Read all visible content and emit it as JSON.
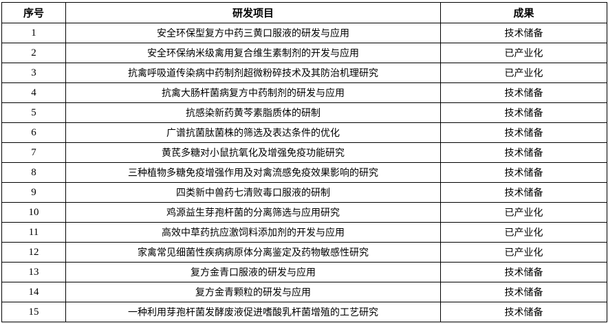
{
  "table": {
    "headers": [
      "序号",
      "研发项目",
      "成果"
    ],
    "rows": [
      {
        "no": "1",
        "project": "安全环保型复方中药三黄口服液的研发与应用",
        "result": "技术储备"
      },
      {
        "no": "2",
        "project": "安全环保纳米级禽用复合维生素制剂的开发与应用",
        "result": "已产业化"
      },
      {
        "no": "3",
        "project": "抗禽呼吸道传染病中药制剂超微粉碎技术及其防治机理研究",
        "result": "已产业化"
      },
      {
        "no": "4",
        "project": "抗禽大肠杆菌病复方中药制剂的研发与应用",
        "result": "技术储备"
      },
      {
        "no": "5",
        "project": "抗感染新药黄芩素脂质体的研制",
        "result": "技术储备"
      },
      {
        "no": "6",
        "project": "广谱抗菌肽菌株的筛选及表达条件的优化",
        "result": "技术储备"
      },
      {
        "no": "7",
        "project": "黄芪多糖对小鼠抗氧化及增强免疫功能研究",
        "result": "技术储备"
      },
      {
        "no": "8",
        "project": "三种植物多糖免疫增强作用及对禽流感免疫效果影响的研究",
        "result": "技术储备"
      },
      {
        "no": "9",
        "project": "四类新中兽药七清败毒口服液的研制",
        "result": "技术储备"
      },
      {
        "no": "10",
        "project": "鸡源益生芽孢杆菌的分离筛选与应用研究",
        "result": "已产业化"
      },
      {
        "no": "11",
        "project": "高效中草药抗应激饲料添加剂的开发与应用",
        "result": "已产业化"
      },
      {
        "no": "12",
        "project": "家禽常见细菌性疾病病原体分离鉴定及药物敏感性研究",
        "result": "已产业化"
      },
      {
        "no": "13",
        "project": "复方金青口服液的研发与应用",
        "result": "技术储备"
      },
      {
        "no": "14",
        "project": "复方金青颗粒的研发与应用",
        "result": "技术储备"
      },
      {
        "no": "15",
        "project": "一种利用芽孢杆菌发酵废液促进嗜酸乳杆菌增殖的工艺研究",
        "result": "技术储备"
      }
    ]
  }
}
